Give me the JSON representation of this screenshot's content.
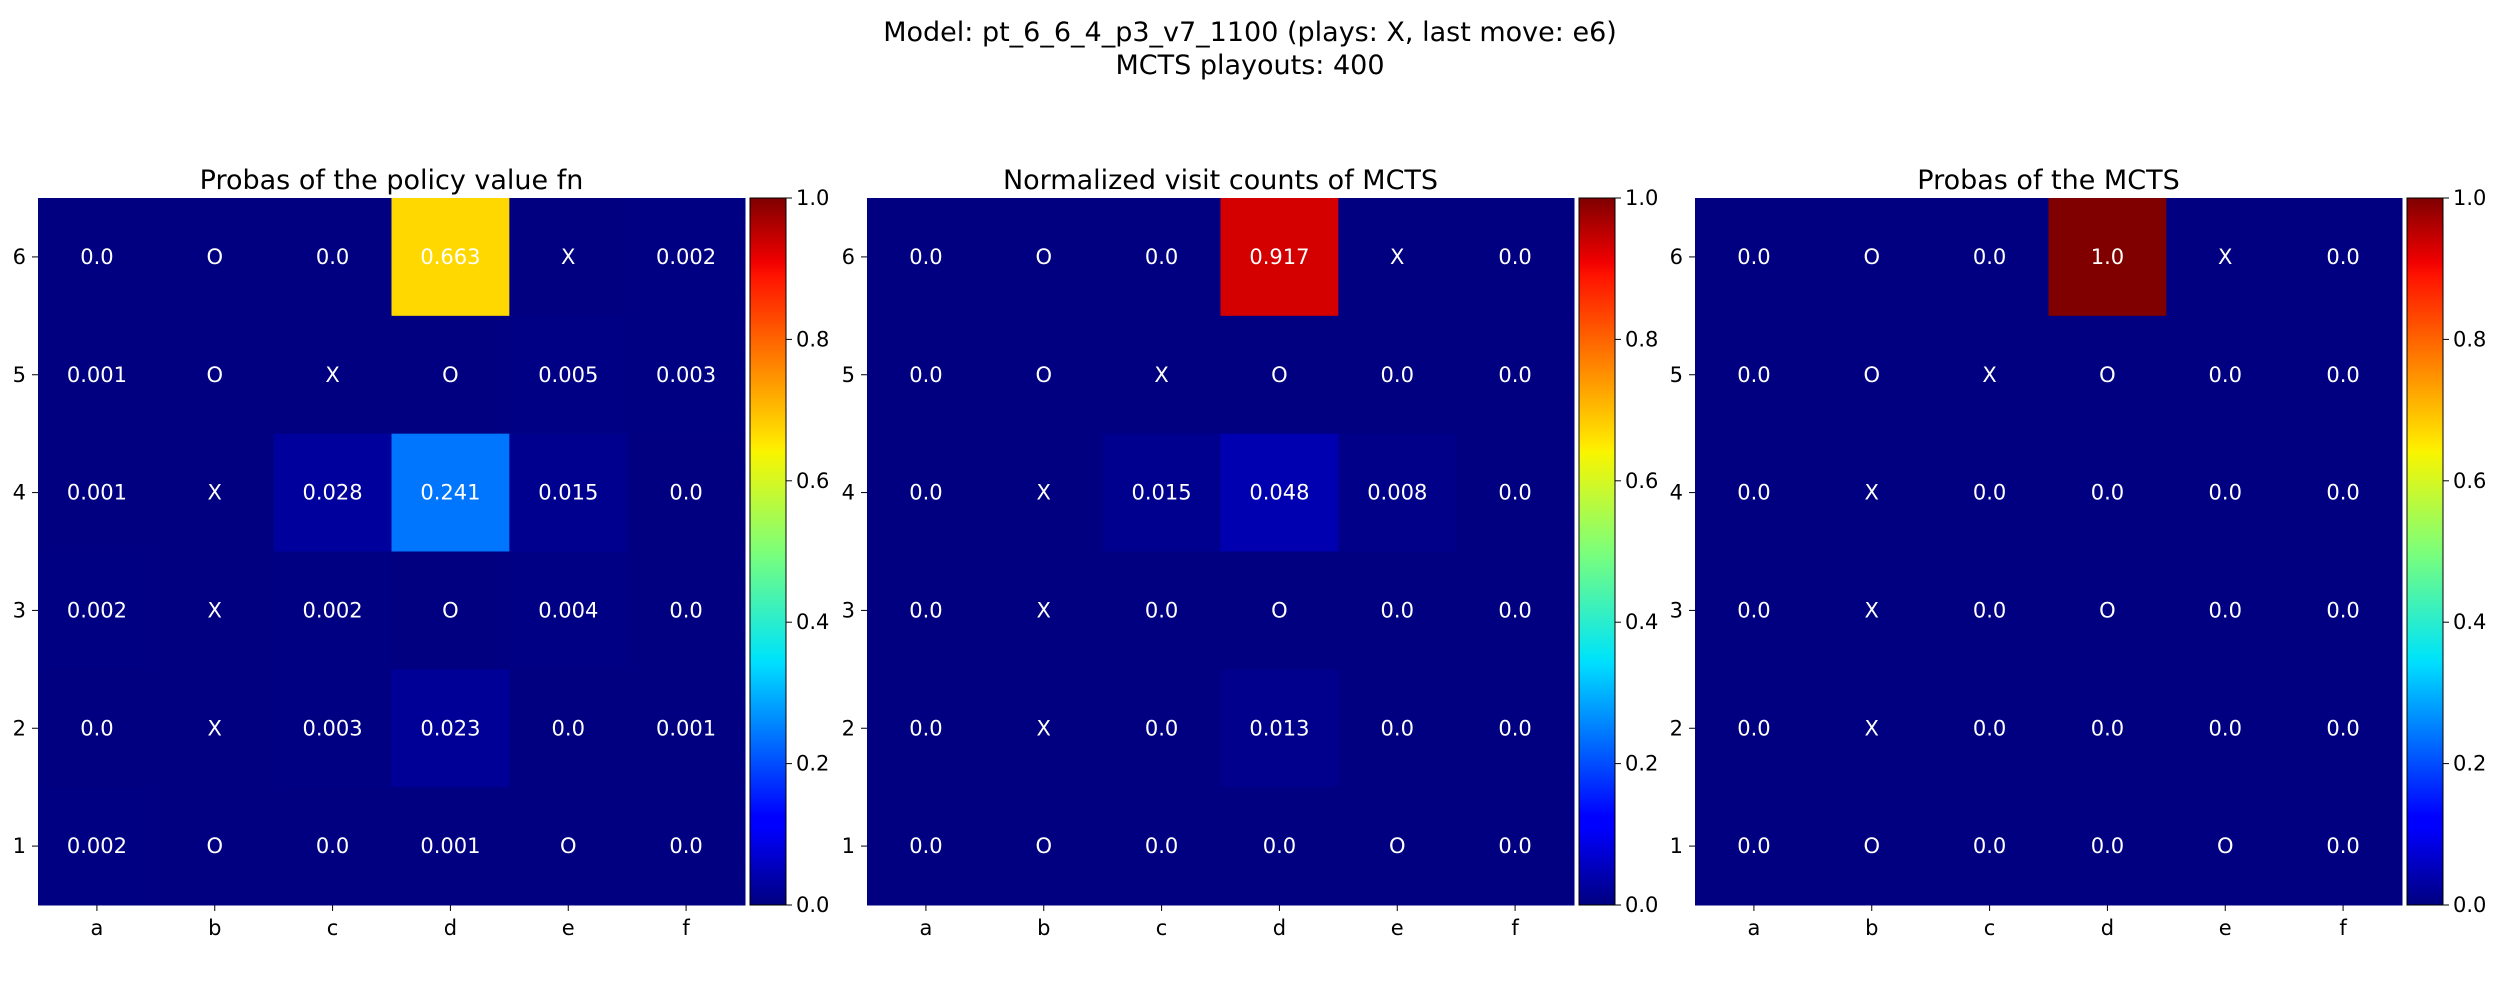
{
  "figure": {
    "title_line1": "Model: pt_6_6_4_p3_v7_1100 (plays: X, last move: e6)",
    "title_line2": "MCTS playouts: 400"
  },
  "chart_data": [
    {
      "type": "heatmap",
      "title": "Probas of the policy value fn",
      "colormap": "jet",
      "vmin": 0.0,
      "vmax": 1.0,
      "x_categories": [
        "a",
        "b",
        "c",
        "d",
        "e",
        "f"
      ],
      "y_categories": [
        "6",
        "5",
        "4",
        "3",
        "2",
        "1"
      ],
      "colorbar_ticks": [
        "0.0",
        "0.2",
        "0.4",
        "0.6",
        "0.8",
        "1.0"
      ],
      "values": [
        [
          0.0,
          0.0,
          0.0,
          0.663,
          0.0,
          0.002
        ],
        [
          0.001,
          0.0,
          0.0,
          0.0,
          0.005,
          0.003
        ],
        [
          0.001,
          0.0,
          0.028,
          0.241,
          0.015,
          0.0
        ],
        [
          0.002,
          0.0,
          0.002,
          0.0,
          0.004,
          0.0
        ],
        [
          0.0,
          0.0,
          0.003,
          0.023,
          0.0,
          0.001
        ],
        [
          0.002,
          0.0,
          0.0,
          0.001,
          0.0,
          0.0
        ]
      ],
      "labels": [
        [
          "0.0",
          "O",
          "0.0",
          "0.663",
          "X",
          "0.002"
        ],
        [
          "0.001",
          "O",
          "X",
          "O",
          "0.005",
          "0.003"
        ],
        [
          "0.001",
          "X",
          "0.028",
          "0.241",
          "0.015",
          "0.0"
        ],
        [
          "0.002",
          "X",
          "0.002",
          "O",
          "0.004",
          "0.0"
        ],
        [
          "0.0",
          "X",
          "0.003",
          "0.023",
          "0.0",
          "0.001"
        ],
        [
          "0.002",
          "O",
          "0.0",
          "0.001",
          "O",
          "0.0"
        ]
      ]
    },
    {
      "type": "heatmap",
      "title": "Normalized visit counts of MCTS",
      "colormap": "jet",
      "vmin": 0.0,
      "vmax": 1.0,
      "x_categories": [
        "a",
        "b",
        "c",
        "d",
        "e",
        "f"
      ],
      "y_categories": [
        "6",
        "5",
        "4",
        "3",
        "2",
        "1"
      ],
      "colorbar_ticks": [
        "0.0",
        "0.2",
        "0.4",
        "0.6",
        "0.8",
        "1.0"
      ],
      "values": [
        [
          0.0,
          0.0,
          0.0,
          0.917,
          0.0,
          0.0
        ],
        [
          0.0,
          0.0,
          0.0,
          0.0,
          0.0,
          0.0
        ],
        [
          0.0,
          0.0,
          0.015,
          0.048,
          0.008,
          0.0
        ],
        [
          0.0,
          0.0,
          0.0,
          0.0,
          0.0,
          0.0
        ],
        [
          0.0,
          0.0,
          0.0,
          0.013,
          0.0,
          0.0
        ],
        [
          0.0,
          0.0,
          0.0,
          0.0,
          0.0,
          0.0
        ]
      ],
      "labels": [
        [
          "0.0",
          "O",
          "0.0",
          "0.917",
          "X",
          "0.0"
        ],
        [
          "0.0",
          "O",
          "X",
          "O",
          "0.0",
          "0.0"
        ],
        [
          "0.0",
          "X",
          "0.015",
          "0.048",
          "0.008",
          "0.0"
        ],
        [
          "0.0",
          "X",
          "0.0",
          "O",
          "0.0",
          "0.0"
        ],
        [
          "0.0",
          "X",
          "0.0",
          "0.013",
          "0.0",
          "0.0"
        ],
        [
          "0.0",
          "O",
          "0.0",
          "0.0",
          "O",
          "0.0"
        ]
      ]
    },
    {
      "type": "heatmap",
      "title": "Probas of the MCTS",
      "colormap": "jet",
      "vmin": 0.0,
      "vmax": 1.0,
      "x_categories": [
        "a",
        "b",
        "c",
        "d",
        "e",
        "f"
      ],
      "y_categories": [
        "6",
        "5",
        "4",
        "3",
        "2",
        "1"
      ],
      "colorbar_ticks": [
        "0.0",
        "0.2",
        "0.4",
        "0.6",
        "0.8",
        "1.0"
      ],
      "values": [
        [
          0.0,
          0.0,
          0.0,
          1.0,
          0.0,
          0.0
        ],
        [
          0.0,
          0.0,
          0.0,
          0.0,
          0.0,
          0.0
        ],
        [
          0.0,
          0.0,
          0.0,
          0.0,
          0.0,
          0.0
        ],
        [
          0.0,
          0.0,
          0.0,
          0.0,
          0.0,
          0.0
        ],
        [
          0.0,
          0.0,
          0.0,
          0.0,
          0.0,
          0.0
        ],
        [
          0.0,
          0.0,
          0.0,
          0.0,
          0.0,
          0.0
        ]
      ],
      "labels": [
        [
          "0.0",
          "O",
          "0.0",
          "1.0",
          "X",
          "0.0"
        ],
        [
          "0.0",
          "O",
          "X",
          "O",
          "0.0",
          "0.0"
        ],
        [
          "0.0",
          "X",
          "0.0",
          "0.0",
          "0.0",
          "0.0"
        ],
        [
          "0.0",
          "X",
          "0.0",
          "O",
          "0.0",
          "0.0"
        ],
        [
          "0.0",
          "X",
          "0.0",
          "0.0",
          "0.0",
          "0.0"
        ],
        [
          "0.0",
          "O",
          "0.0",
          "0.0",
          "O",
          "0.0"
        ]
      ]
    }
  ]
}
